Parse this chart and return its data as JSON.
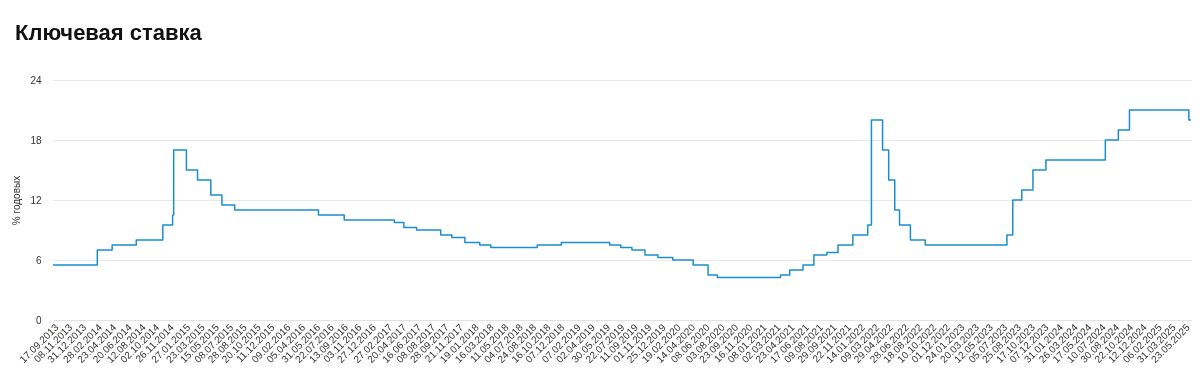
{
  "chart_data": {
    "type": "step",
    "title": "Ключевая ставка",
    "ylabel": "% годовых",
    "x": [
      "2013-09-17",
      "2014-03-03",
      "2014-04-28",
      "2014-07-28",
      "2014-11-05",
      "2014-12-12",
      "2014-12-16",
      "2015-02-02",
      "2015-03-16",
      "2015-05-05",
      "2015-06-16",
      "2015-08-03",
      "2016-06-14",
      "2016-09-19",
      "2017-03-27",
      "2017-05-02",
      "2017-06-19",
      "2017-09-18",
      "2017-10-30",
      "2017-12-18",
      "2018-02-12",
      "2018-03-26",
      "2018-09-17",
      "2018-12-17",
      "2019-06-17",
      "2019-07-29",
      "2019-09-09",
      "2019-10-28",
      "2019-12-16",
      "2020-02-10",
      "2020-04-27",
      "2020-06-22",
      "2020-07-27",
      "2021-03-22",
      "2021-04-26",
      "2021-06-15",
      "2021-07-26",
      "2021-09-13",
      "2021-10-25",
      "2021-12-20",
      "2022-02-14",
      "2022-02-28",
      "2022-04-11",
      "2022-05-04",
      "2022-05-27",
      "2022-06-14",
      "2022-07-25",
      "2022-09-19",
      "2023-07-24",
      "2023-08-15",
      "2023-09-18",
      "2023-10-30",
      "2023-12-18",
      "2024-07-29",
      "2024-09-16",
      "2024-10-28",
      "2025-06-09",
      "2025-06-17"
    ],
    "series": [
      {
        "color": "#1a8fd0",
        "values": [
          5.5,
          7,
          7.5,
          8,
          9.5,
          10.5,
          17,
          15,
          14,
          12.5,
          11.5,
          11,
          10.5,
          10,
          9.75,
          9.25,
          9,
          8.5,
          8.25,
          7.75,
          7.5,
          7.25,
          7.5,
          7.75,
          7.5,
          7.25,
          7,
          6.5,
          6.25,
          6,
          5.5,
          4.5,
          4.25,
          4.5,
          5,
          5.5,
          6.5,
          6.75,
          7.5,
          8.5,
          9.5,
          20,
          17,
          14,
          11,
          9.5,
          8,
          7.5,
          8.5,
          12,
          13,
          15,
          16,
          18,
          19,
          21,
          20,
          20
        ]
      }
    ],
    "ylim": [
      0,
      24
    ],
    "yticks": [
      0,
      6,
      12,
      18,
      24
    ],
    "grid": "y",
    "xlim": [
      "2013-09-17",
      "2025-06-17"
    ],
    "xticks": [
      {
        "value": "2013-09-17",
        "label": "17.09.2013"
      },
      {
        "value": "2013-11-08",
        "label": "08.11.2013"
      },
      {
        "value": "2013-12-31",
        "label": "31.12.2013"
      },
      {
        "value": "2014-02-28",
        "label": "28.02.2014"
      },
      {
        "value": "2014-04-23",
        "label": "23.04.2014"
      },
      {
        "value": "2014-06-20",
        "label": "20.06.2014"
      },
      {
        "value": "2014-08-12",
        "label": "12.08.2014"
      },
      {
        "value": "2014-10-02",
        "label": "02.10.2014"
      },
      {
        "value": "2014-11-26",
        "label": "26.11.2014"
      },
      {
        "value": "2015-01-27",
        "label": "27.01.2015"
      },
      {
        "value": "2015-03-23",
        "label": "23.03.2015"
      },
      {
        "value": "2015-05-15",
        "label": "15.05.2015"
      },
      {
        "value": "2015-07-08",
        "label": "08.07.2015"
      },
      {
        "value": "2015-08-28",
        "label": "28.08.2015"
      },
      {
        "value": "2015-10-20",
        "label": "20.10.2015"
      },
      {
        "value": "2015-12-11",
        "label": "11.12.2015"
      },
      {
        "value": "2016-02-09",
        "label": "09.02.2016"
      },
      {
        "value": "2016-04-05",
        "label": "05.04.2016"
      },
      {
        "value": "2016-05-31",
        "label": "31.05.2016"
      },
      {
        "value": "2016-07-22",
        "label": "22.07.2016"
      },
      {
        "value": "2016-09-13",
        "label": "13.09.2016"
      },
      {
        "value": "2016-11-03",
        "label": "03.11.2016"
      },
      {
        "value": "2016-12-27",
        "label": "27.12.2016"
      },
      {
        "value": "2017-02-27",
        "label": "27.02.2017"
      },
      {
        "value": "2017-04-20",
        "label": "20.04.2017"
      },
      {
        "value": "2017-06-16",
        "label": "16.06.2017"
      },
      {
        "value": "2017-08-08",
        "label": "08.08.2017"
      },
      {
        "value": "2017-09-28",
        "label": "28.09.2017"
      },
      {
        "value": "2017-11-21",
        "label": "21.11.2017"
      },
      {
        "value": "2018-01-19",
        "label": "19.01.2018"
      },
      {
        "value": "2018-03-16",
        "label": "16.03.2018"
      },
      {
        "value": "2018-05-11",
        "label": "11.05.2018"
      },
      {
        "value": "2018-07-04",
        "label": "04.07.2018"
      },
      {
        "value": "2018-08-24",
        "label": "24.08.2018"
      },
      {
        "value": "2018-10-16",
        "label": "16.10.2018"
      },
      {
        "value": "2018-12-07",
        "label": "07.12.2018"
      },
      {
        "value": "2019-02-07",
        "label": "07.02.2019"
      },
      {
        "value": "2019-04-02",
        "label": "02.04.2019"
      },
      {
        "value": "2019-05-30",
        "label": "30.05.2019"
      },
      {
        "value": "2019-07-22",
        "label": "22.07.2019"
      },
      {
        "value": "2019-09-11",
        "label": "11.09.2019"
      },
      {
        "value": "2019-11-01",
        "label": "01.11.2019"
      },
      {
        "value": "2019-12-25",
        "label": "25.12.2019"
      },
      {
        "value": "2020-02-19",
        "label": "19.02.2020"
      },
      {
        "value": "2020-04-14",
        "label": "14.04.2020"
      },
      {
        "value": "2020-06-08",
        "label": "08.06.2020"
      },
      {
        "value": "2020-08-03",
        "label": "03.08.2020"
      },
      {
        "value": "2020-09-23",
        "label": "23.09.2020"
      },
      {
        "value": "2020-11-16",
        "label": "16.11.2020"
      },
      {
        "value": "2021-01-08",
        "label": "08.01.2021"
      },
      {
        "value": "2021-03-02",
        "label": "02.03.2021"
      },
      {
        "value": "2021-04-23",
        "label": "23.04.2021"
      },
      {
        "value": "2021-06-17",
        "label": "17.06.2021"
      },
      {
        "value": "2021-08-09",
        "label": "09.08.2021"
      },
      {
        "value": "2021-09-29",
        "label": "29.09.2021"
      },
      {
        "value": "2021-11-22",
        "label": "22.11.2021"
      },
      {
        "value": "2022-01-14",
        "label": "14.01.2022"
      },
      {
        "value": "2022-03-09",
        "label": "09.03.2022"
      },
      {
        "value": "2022-04-29",
        "label": "29.04.2022"
      },
      {
        "value": "2022-06-28",
        "label": "28.06.2022"
      },
      {
        "value": "2022-08-18",
        "label": "18.08.2022"
      },
      {
        "value": "2022-10-10",
        "label": "10.10.2022"
      },
      {
        "value": "2022-12-01",
        "label": "01.12.2022"
      },
      {
        "value": "2023-01-24",
        "label": "24.01.2023"
      },
      {
        "value": "2023-03-20",
        "label": "20.03.2023"
      },
      {
        "value": "2023-05-12",
        "label": "12.05.2023"
      },
      {
        "value": "2023-07-05",
        "label": "05.07.2023"
      },
      {
        "value": "2023-08-25",
        "label": "25.08.2023"
      },
      {
        "value": "2023-10-17",
        "label": "17.10.2023"
      },
      {
        "value": "2023-12-07",
        "label": "07.12.2023"
      },
      {
        "value": "2024-01-31",
        "label": "31.01.2024"
      },
      {
        "value": "2024-03-26",
        "label": "26.03.2024"
      },
      {
        "value": "2024-05-17",
        "label": "17.05.2024"
      },
      {
        "value": "2024-07-10",
        "label": "10.07.2024"
      },
      {
        "value": "2024-08-30",
        "label": "30.08.2024"
      },
      {
        "value": "2024-10-22",
        "label": "22.10.2024"
      },
      {
        "value": "2024-12-12",
        "label": "12.12.2024"
      },
      {
        "value": "2025-02-06",
        "label": "06.02.2025"
      },
      {
        "value": "2025-03-31",
        "label": "31.03.2025"
      },
      {
        "value": "2025-05-23",
        "label": "23.05.2025"
      }
    ]
  }
}
